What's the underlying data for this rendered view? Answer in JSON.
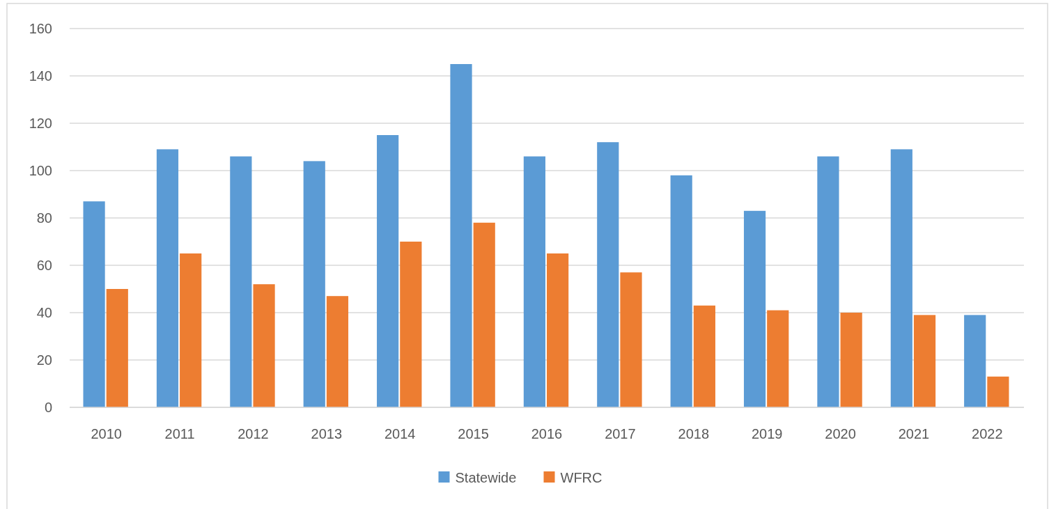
{
  "chart_data": {
    "type": "bar",
    "categories": [
      "2010",
      "2011",
      "2012",
      "2013",
      "2014",
      "2015",
      "2016",
      "2017",
      "2018",
      "2019",
      "2020",
      "2021",
      "2022"
    ],
    "series": [
      {
        "name": "Statewide",
        "color": "#5b9bd5",
        "values": [
          87,
          109,
          106,
          104,
          115,
          145,
          106,
          112,
          98,
          83,
          106,
          109,
          39
        ]
      },
      {
        "name": "WFRC",
        "color": "#ed7d31",
        "values": [
          50,
          65,
          52,
          47,
          70,
          78,
          65,
          57,
          43,
          41,
          40,
          39,
          13
        ]
      }
    ],
    "ylim": [
      0,
      160
    ],
    "yticks": [
      0,
      20,
      40,
      60,
      80,
      100,
      120,
      140,
      160
    ],
    "grid": "y",
    "legend": "bottom"
  }
}
